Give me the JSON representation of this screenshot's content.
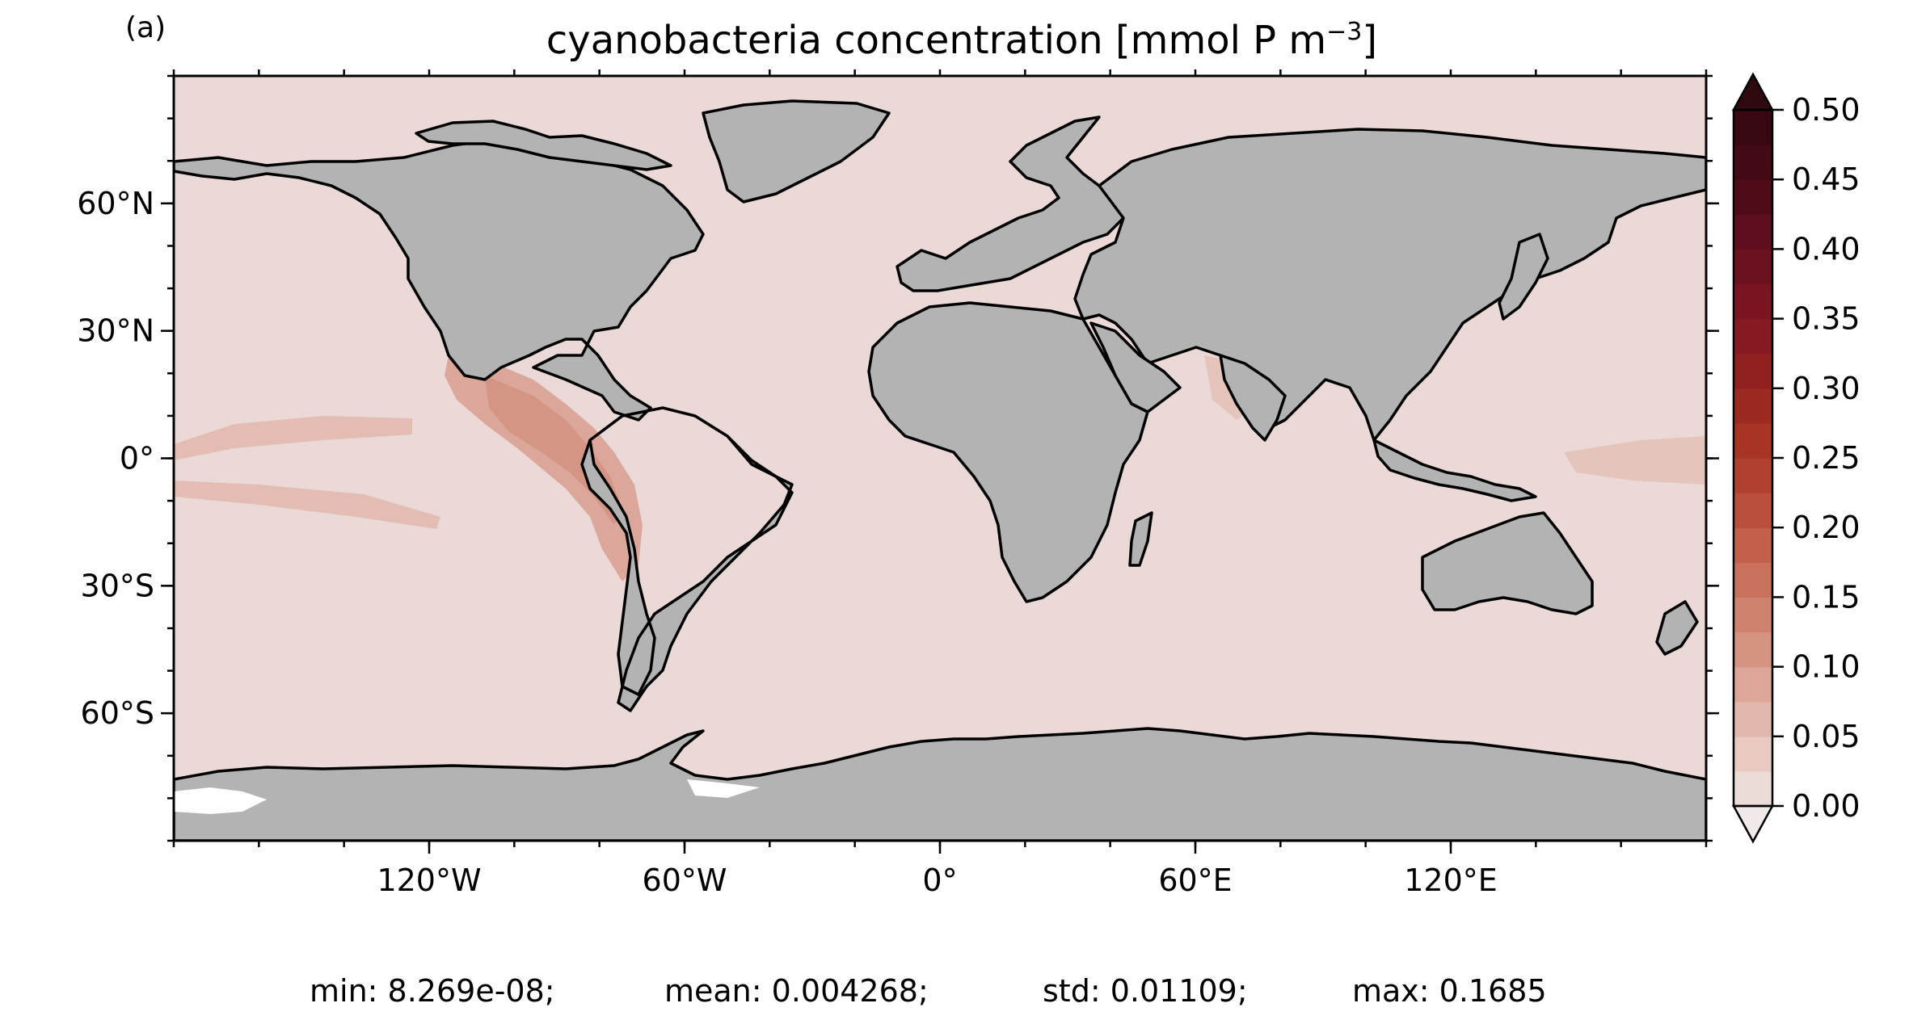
{
  "panel_label": "(a)",
  "title": {
    "prefix": "cyanobacteria concentration [mmol P m",
    "superscript": "−3",
    "suffix": "]"
  },
  "colors": {
    "land": "#b3b3b3",
    "ocean_background": "#ead9d6",
    "coastline": "#000000",
    "ice_ocean_gap": "#ffffff"
  },
  "chart_data": {
    "type": "heatmap",
    "projection": "PlateCarree",
    "variable": "cyanobacteria concentration",
    "units": "mmol P m−3",
    "lon_range": [
      -180,
      180
    ],
    "lat_range": [
      -90,
      90
    ],
    "x_ticks": [
      {
        "value": -120,
        "label": "120°W"
      },
      {
        "value": -60,
        "label": "60°W"
      },
      {
        "value": 0,
        "label": "0°"
      },
      {
        "value": 60,
        "label": "60°E"
      },
      {
        "value": 120,
        "label": "120°E"
      }
    ],
    "y_ticks": [
      {
        "value": 60,
        "label": "60°N"
      },
      {
        "value": 30,
        "label": "30°N"
      },
      {
        "value": 0,
        "label": "0°"
      },
      {
        "value": -30,
        "label": "30°S"
      },
      {
        "value": -60,
        "label": "60°S"
      }
    ],
    "colorbar": {
      "min": 0.0,
      "max": 0.5,
      "extend": "both",
      "levels": [
        0.0,
        0.025,
        0.05,
        0.075,
        0.1,
        0.125,
        0.15,
        0.175,
        0.2,
        0.225,
        0.25,
        0.275,
        0.3,
        0.325,
        0.35,
        0.375,
        0.4,
        0.425,
        0.45,
        0.475,
        0.5
      ],
      "level_colors": [
        "#ecdcd8",
        "#e8cac3",
        "#e2b8ad",
        "#dda698",
        "#d69382",
        "#cf826e",
        "#c9715c",
        "#c2604b",
        "#ba4f3c",
        "#b1402f",
        "#a73425",
        "#9c2a21",
        "#912120",
        "#861a22",
        "#7a1421",
        "#6c111f",
        "#5e0e1c",
        "#500b18",
        "#430915",
        "#380711"
      ],
      "under_color": "#f2eaea",
      "over_color": "#2e0a0e",
      "tick_values": [
        0.0,
        0.05,
        0.1,
        0.15,
        0.2,
        0.25,
        0.3,
        0.35,
        0.4,
        0.45,
        0.5
      ],
      "tick_labels": [
        "0.00",
        "0.05",
        "0.10",
        "0.15",
        "0.20",
        "0.25",
        "0.30",
        "0.35",
        "0.40",
        "0.45",
        "0.50"
      ]
    },
    "elevated_regions": [
      {
        "region": "eastern tropical Pacific off Central/South America",
        "value": 0.06
      },
      {
        "region": "equatorial Pacific north band",
        "value": 0.035
      },
      {
        "region": "equatorial Pacific south band",
        "value": 0.035
      },
      {
        "region": "western equatorial Pacific",
        "value": 0.03
      },
      {
        "region": "Arabian Sea",
        "value": 0.03
      }
    ],
    "background_value": 0.01
  },
  "stats": {
    "min": "min: 8.269e-08;",
    "mean": "mean: 0.004268;",
    "std": "std: 0.01109;",
    "max": "max: 0.1685"
  }
}
